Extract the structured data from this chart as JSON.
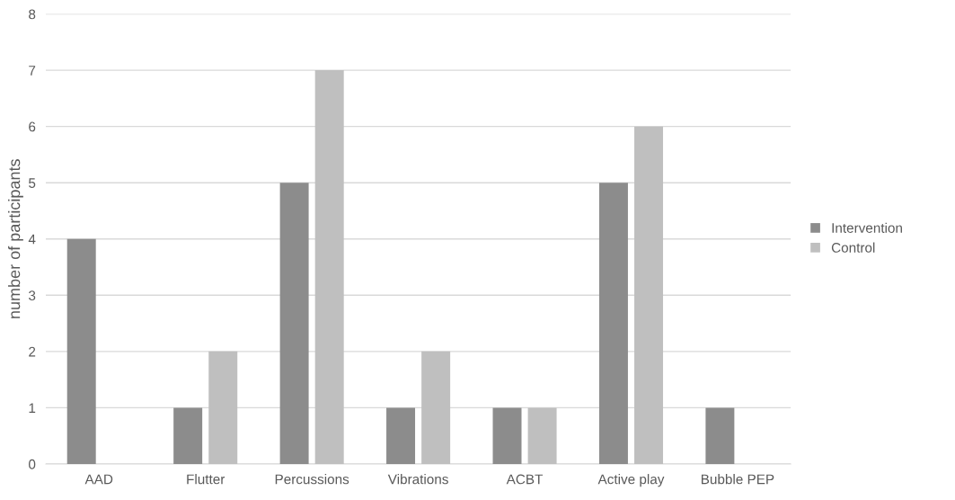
{
  "chart_data": {
    "type": "bar",
    "ylabel": "number of participants",
    "categories": [
      "AAD",
      "Flutter",
      "Percussions",
      "Vibrations",
      "ACBT",
      "Active play",
      "Bubble PEP"
    ],
    "series": [
      {
        "name": "Intervention",
        "color": "#8c8c8c",
        "values": [
          4,
          1,
          5,
          1,
          1,
          5,
          1
        ]
      },
      {
        "name": "Control",
        "color": "#bfbfbf",
        "values": [
          0,
          2,
          7,
          2,
          1,
          6,
          0
        ]
      }
    ],
    "ylim": [
      0,
      8
    ],
    "yticks": [
      0,
      1,
      2,
      3,
      4,
      5,
      6,
      7,
      8
    ],
    "grid": "y",
    "legend": "right"
  }
}
